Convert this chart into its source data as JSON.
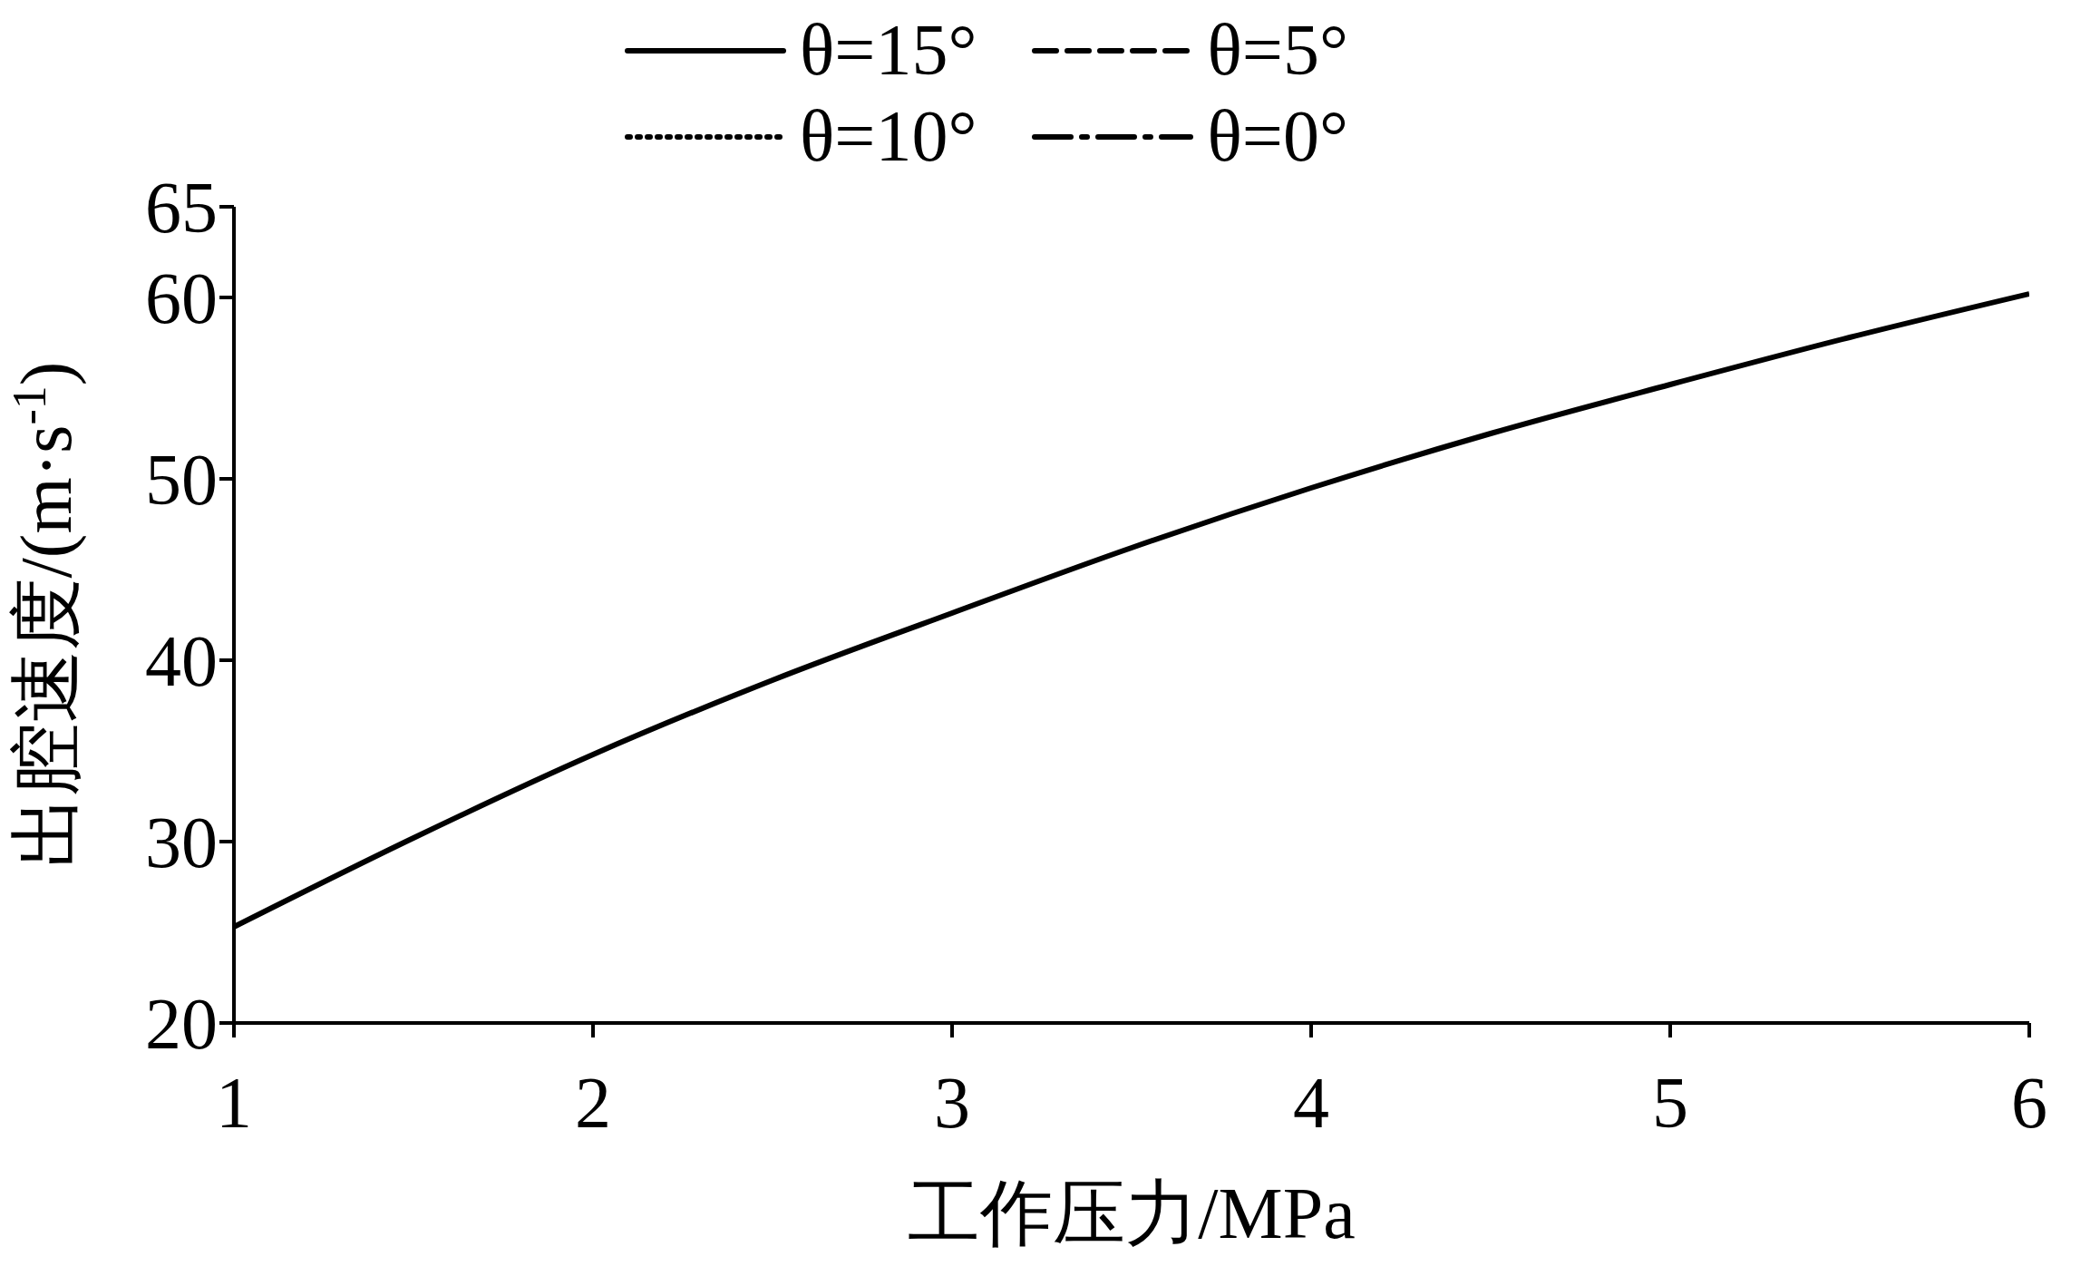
{
  "chart_data": {
    "type": "line",
    "xlabel": "工作压力/MPa",
    "ylabel": "出腔速度/(m·s$^{-1}$)",
    "x": [
      1,
      1.5,
      2,
      2.5,
      3,
      3.5,
      4,
      4.5,
      5,
      5.5,
      6
    ],
    "series": [
      {
        "name": "θ=15°",
        "color": "#000000",
        "line_style": "solid",
        "values": [
          25.3,
          30.2,
          34.8,
          38.9,
          42.6,
          46.2,
          49.5,
          52.5,
          55.2,
          57.8,
          60.2
        ]
      },
      {
        "name": "θ=5°",
        "color": "#000000",
        "line_style": "dashed",
        "values": [
          null,
          null,
          null,
          null,
          null,
          null,
          null,
          null,
          null,
          null,
          null
        ]
      },
      {
        "name": "θ=10°",
        "color": "#000000",
        "line_style": "dotted",
        "values": [
          null,
          null,
          null,
          null,
          null,
          null,
          null,
          null,
          null,
          null,
          null
        ]
      },
      {
        "name": "θ=0°",
        "color": "#000000",
        "line_style": "dashdot",
        "values": [
          null,
          null,
          null,
          null,
          null,
          null,
          null,
          null,
          null,
          null,
          null
        ]
      }
    ],
    "xlim": [
      1,
      6
    ],
    "xticks": [
      1,
      2,
      3,
      4,
      5,
      6
    ],
    "ylim": [
      20,
      65
    ],
    "yticks": [
      20,
      30,
      40,
      50,
      60,
      65
    ],
    "grid": false,
    "marker": "none",
    "legend": "top"
  }
}
